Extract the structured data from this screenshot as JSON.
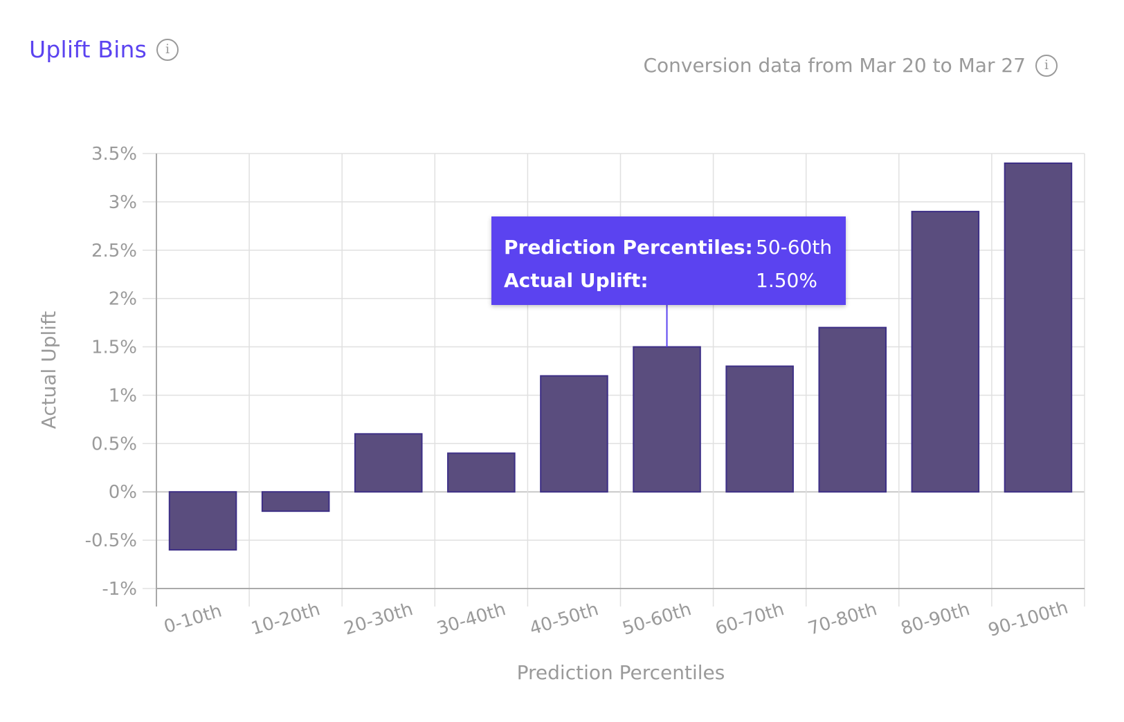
{
  "header": {
    "title": "Uplift Bins",
    "subtitle": "Conversion data from Mar 20 to Mar 27"
  },
  "icons": {
    "title_info": "info-icon",
    "subtitle_info": "info-icon"
  },
  "tooltip": {
    "key1": "Prediction Percentiles:",
    "val1": "50-60th",
    "key2": "Actual Uplift:",
    "val2": "1.50%"
  },
  "colors": {
    "bar": "#5a4d7e",
    "bar_stroke": "#3d2f86",
    "accent": "#5b43f0",
    "grid": "#e0e0e0",
    "tick_text": "#9a9a9a"
  },
  "chart_data": {
    "type": "bar",
    "title": "Uplift Bins",
    "xlabel": "Prediction Percentiles",
    "ylabel": "Actual Uplift",
    "categories": [
      "0-10th",
      "10-20th",
      "20-30th",
      "30-40th",
      "40-50th",
      "50-60th",
      "60-70th",
      "70-80th",
      "80-90th",
      "90-100th"
    ],
    "values": [
      -0.6,
      -0.2,
      0.6,
      0.4,
      1.2,
      1.5,
      1.3,
      1.7,
      2.9,
      3.4
    ],
    "ylim": [
      -1,
      3.5
    ],
    "yticks": [
      -1,
      -0.5,
      0,
      0.5,
      1,
      1.5,
      2,
      2.5,
      3,
      3.5
    ],
    "ytick_labels": [
      "-1%",
      "-0.5%",
      "0%",
      "0.5%",
      "1%",
      "1.5%",
      "2%",
      "2.5%",
      "3%",
      "3.5%"
    ],
    "grid": true,
    "legend": "none",
    "highlighted_category": "50-60th"
  }
}
